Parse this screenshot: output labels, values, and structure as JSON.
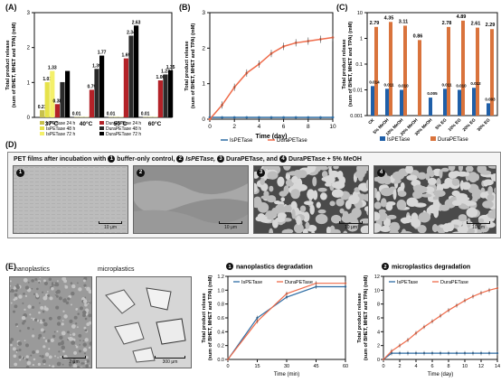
{
  "panels": {
    "a": "(A)",
    "b": "(B)",
    "c": "(C)",
    "d": "(D)",
    "e": "(E)"
  },
  "colors": {
    "is24": "#c8c14e",
    "is48": "#e6e24a",
    "is72": "#f4f06a",
    "dura24": "#b32228",
    "dura48": "#2a2a2a",
    "dura72": "#000000",
    "ispetase_line": "#2e6da4",
    "durapetase_line": "#ef6b4a",
    "ispetase_bar": "#1f5fa8",
    "durapetase_bar": "#d9733c"
  },
  "panel_a": {
    "ylabel": "Total product release",
    "ylabel2": "(sum of BHET, MHET and TPA) (mM)",
    "legend": [
      "IsPETase 24 h",
      "IsPETase 48 h",
      "IsPETase 72 h",
      "DuraPETase 24 h",
      "DuraPETase 48 h",
      "DuraPETase 72 h"
    ]
  },
  "panel_b": {
    "xlabel": "Time (day)",
    "ylabel": "Total product release",
    "ylabel2": "(sum of BHET, MHET and TPA) (mM)",
    "legend": [
      "IsPETase",
      "DuraPETase"
    ]
  },
  "panel_c": {
    "ylabel": "Total product release",
    "ylabel2": "(sum of BHET, MHET and TPA) (mM)",
    "legend": [
      "IsPETase",
      "DuraPETase"
    ]
  },
  "panel_d": {
    "caption_prefix": "PET films after incubation with",
    "items": [
      "buffer-only control,",
      "IsPETase,",
      "DuraPETase,",
      "and",
      "DuraPETase + 5% MeOH"
    ],
    "badges": [
      "1",
      "2",
      "3",
      "4"
    ],
    "scale": "10 μm"
  },
  "panel_e": {
    "nano_label": "nanoplastics",
    "micro_label": "microplastics",
    "nano_scale": "2 μm",
    "micro_scale": "300 μm",
    "chart1_title": "nanoplastics degradation",
    "chart2_title": "microplastics degradation",
    "badge1": "1",
    "badge2": "2",
    "xlabel1": "Time (min)",
    "xlabel2": "Time (day)",
    "ylabel": "Total product release",
    "ylabel2": "(sum of BHET, MHET and TPA) (mM)",
    "legend": [
      "IsPETase",
      "DuraPETase"
    ]
  },
  "chart_data": [
    {
      "type": "bar",
      "categories": [
        "37°C",
        "40°C",
        "50°C",
        "60°C"
      ],
      "series": [
        {
          "name": "IsPETase 24 h",
          "values": [
            0.21,
            0.01,
            0.01,
            0.01
          ]
        },
        {
          "name": "IsPETase 48 h",
          "values": [
            1.01,
            0.01,
            0.01,
            0.01
          ]
        },
        {
          "name": "IsPETase 72 h",
          "values": [
            1.33,
            0.01,
            0.01,
            0.01
          ]
        },
        {
          "name": "DuraPETase 24 h",
          "values": [
            0.38,
            0.79,
            1.69,
            1.06
          ]
        },
        {
          "name": "DuraPETase 48 h",
          "values": [
            1.01,
            1.39,
            2.34,
            1.23
          ]
        },
        {
          "name": "DuraPETase 72 h",
          "values": [
            1.33,
            1.77,
            2.63,
            1.35
          ]
        }
      ],
      "data_labels": [
        [
          "0.21",
          "1.01",
          "1.33",
          "0.38",
          "",
          ""
        ],
        [
          "0.01",
          "",
          "",
          "0.79",
          "1.39",
          "1.77"
        ],
        [
          "0.01",
          "",
          "",
          "1.69",
          "2.34",
          "2.63"
        ],
        [
          "0.01",
          "",
          "",
          "1.06",
          "1.23",
          "1.35"
        ]
      ],
      "ylim": [
        0,
        3
      ],
      "yticks": [
        "0",
        "1",
        "2",
        "3"
      ]
    },
    {
      "type": "line",
      "x": [
        0,
        1,
        2,
        3,
        4,
        5,
        6,
        7,
        8,
        9,
        10
      ],
      "series": [
        {
          "name": "IsPETase",
          "values": [
            0.05,
            0.05,
            0.05,
            0.05,
            0.05,
            0.05,
            0.05,
            0.05,
            0.05,
            0.05,
            0.05
          ]
        },
        {
          "name": "DuraPETase",
          "values": [
            0.0,
            0.4,
            0.9,
            1.3,
            1.55,
            1.85,
            2.05,
            2.15,
            2.2,
            2.25,
            2.3
          ]
        }
      ],
      "xlabel": "Time (day)",
      "xlim": [
        0,
        10
      ],
      "ylim": [
        0,
        3
      ],
      "xticks": [
        "0",
        "2",
        "4",
        "6",
        "8",
        "10"
      ],
      "yticks": [
        "0",
        "1",
        "2",
        "3"
      ]
    },
    {
      "type": "bar",
      "categories": [
        "CK",
        "5% MeOH",
        "10% MeOH",
        "20% MeOH",
        "30% MeOH",
        "5% EG",
        "10% EG",
        "20% EG",
        "30% EG"
      ],
      "series": [
        {
          "name": "IsPETase",
          "values": [
            0.014,
            0.011,
            0.01,
            null,
            0.005,
            0.011,
            0.01,
            0.012,
            0.003
          ]
        },
        {
          "name": "DuraPETase",
          "values": [
            2.79,
            4.35,
            3.11,
            0.86,
            null,
            2.78,
            4.89,
            2.61,
            2.29
          ]
        }
      ],
      "data_labels": {
        "IsPETase": [
          "0.014",
          "0.011",
          "0.010",
          "",
          "0.005",
          "0.011",
          "0.010",
          "0.012",
          "0.003"
        ],
        "DuraPETase": [
          "2.79",
          "4.35",
          "3.11",
          "0.86",
          "",
          "2.78",
          "4.89",
          "2.61",
          "2.29"
        ]
      },
      "yticks": [
        "0.001",
        "0.01",
        "0.1",
        "1",
        "10"
      ],
      "log_scale": true
    },
    {
      "type": "line",
      "x": [
        0,
        15,
        30,
        45,
        60
      ],
      "series": [
        {
          "name": "IsPETase",
          "values": [
            0.0,
            0.6,
            0.9,
            1.05,
            1.05
          ]
        },
        {
          "name": "DuraPETase",
          "values": [
            0.0,
            0.55,
            0.95,
            1.1,
            1.1
          ]
        }
      ],
      "xlabel": "Time (min)",
      "xlim": [
        0,
        60
      ],
      "ylim": [
        0,
        1.2
      ],
      "xticks": [
        "0",
        "15",
        "30",
        "45",
        "60"
      ],
      "yticks": [
        "0.0",
        "0.2",
        "0.4",
        "0.6",
        "0.8",
        "1.0",
        "1.2"
      ]
    },
    {
      "type": "line",
      "x": [
        0,
        1,
        2,
        3,
        4,
        5,
        6,
        7,
        8,
        9,
        10,
        11,
        12,
        13,
        14
      ],
      "series": [
        {
          "name": "IsPETase",
          "values": [
            0,
            0.9,
            0.9,
            0.9,
            0.9,
            0.9,
            0.9,
            0.9,
            0.9,
            0.9,
            0.9,
            0.9,
            0.9,
            0.9,
            0.9
          ]
        },
        {
          "name": "DuraPETase",
          "values": [
            0,
            1.2,
            2.0,
            2.8,
            3.8,
            4.7,
            5.5,
            6.3,
            7.1,
            7.8,
            8.5,
            9.1,
            9.6,
            10.0,
            10.3
          ]
        }
      ],
      "xlabel": "Time (day)",
      "xlim": [
        0,
        14
      ],
      "ylim": [
        0,
        12
      ],
      "xticks": [
        "0",
        "2",
        "4",
        "6",
        "8",
        "10",
        "12",
        "14"
      ],
      "yticks": [
        "0",
        "2",
        "4",
        "6",
        "8",
        "10",
        "12"
      ]
    }
  ]
}
